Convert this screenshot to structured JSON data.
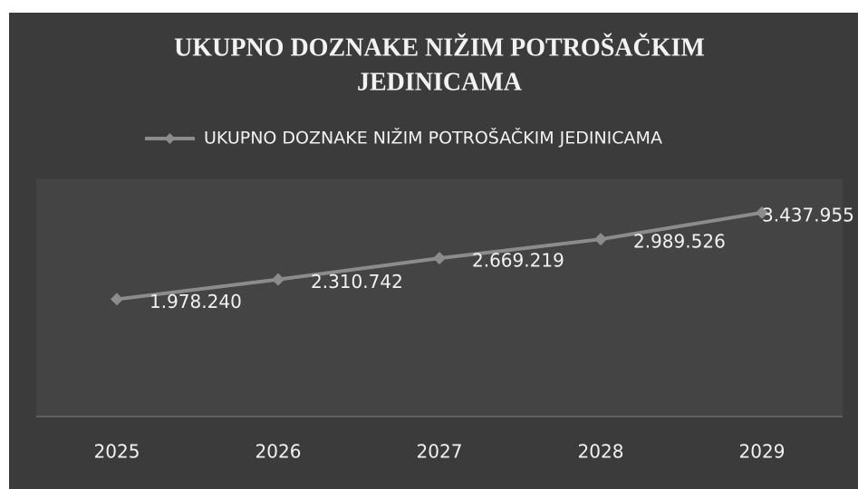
{
  "chart_data": {
    "type": "line",
    "title": [
      "UKUPNO DOZNAKE NIŽIM POTROŠAČKIM",
      "JEDINICAMA"
    ],
    "categories": [
      "2025",
      "2026",
      "2027",
      "2028",
      "2029"
    ],
    "series": [
      {
        "name": "UKUPNO DOZNAKE NIŽIM POTROŠAČKIM JEDINICAMA",
        "color": "#8c8c8c",
        "values": [
          1978240,
          2310742,
          2669219,
          2989526,
          3437955
        ],
        "value_labels": [
          "1.978.240",
          "2.310.742",
          "2.669.219",
          "2.989.526",
          "3.437.955"
        ]
      }
    ],
    "ylim": [
      0,
      4000000
    ],
    "legend": "top"
  }
}
